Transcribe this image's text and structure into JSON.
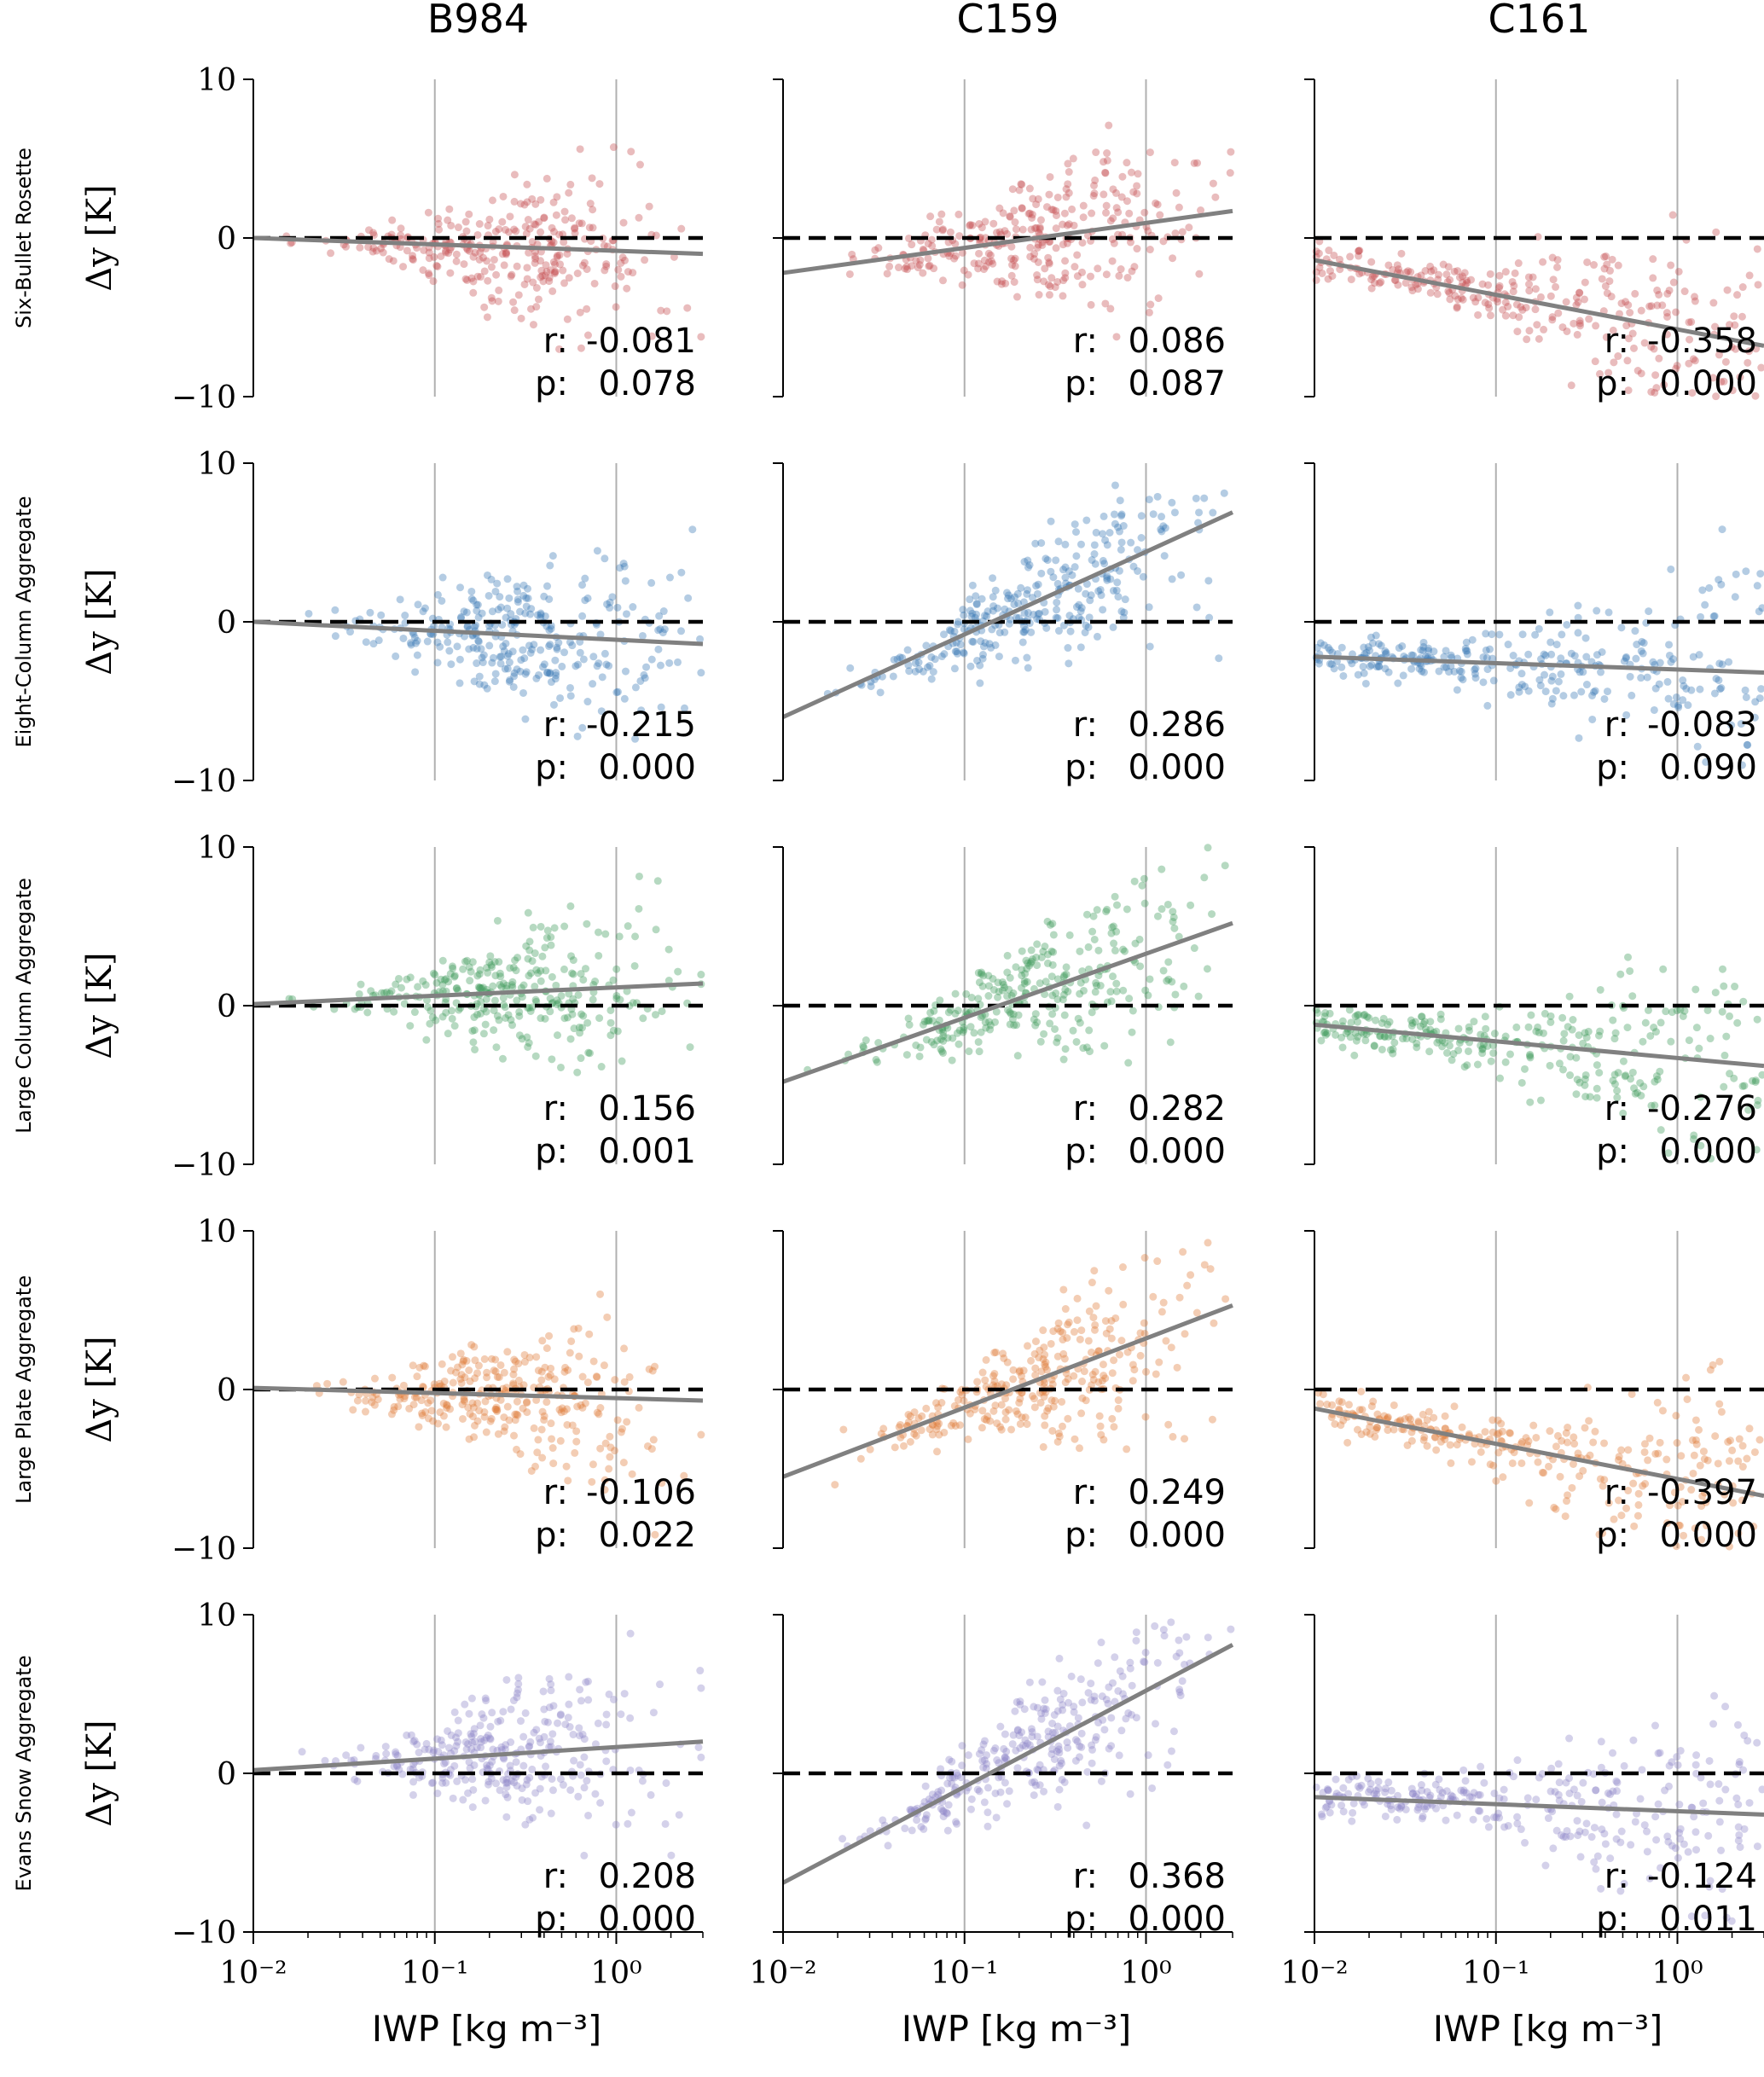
{
  "figure": {
    "column_titles": [
      "B984",
      "C159",
      "C161"
    ],
    "row_labels": [
      "Six-Bullet Rosette",
      "Eight-Column Aggregate",
      "Large Column Aggregate",
      "Large Plate Aggregate",
      "Evans Snow Aggregate"
    ],
    "ylabel": "Δy [K]",
    "xlabel": "IWP [kg m⁻³]",
    "y_tick_labels": [
      "10",
      "0",
      "−10"
    ],
    "x_tick_labels": [
      "10⁻²",
      "10⁻¹",
      "10⁰"
    ],
    "r_label": "r:",
    "p_label": "p:"
  },
  "colors": {
    "Six-Bullet Rosette": "#c44e52",
    "Eight-Column Aggregate": "#3a78b5",
    "Large Column Aggregate": "#3f9a5c",
    "Large Plate Aggregate": "#e07b39",
    "Evans Snow Aggregate": "#8f86c8",
    "fit_line": "#808080",
    "zero_line": "#000000",
    "grid": "#b0b0b0"
  },
  "chart_data": [
    {
      "type": "scatter",
      "row": "Six-Bullet Rosette",
      "column": "B984",
      "xscale": "log",
      "xlim": [
        0.01,
        3
      ],
      "ylim": [
        -10,
        10
      ],
      "fit": {
        "x": [
          0.01,
          3
        ],
        "y": [
          0.0,
          -1.0
        ]
      },
      "zero_line": 0,
      "r": "-0.081",
      "p": "0.078"
    },
    {
      "type": "scatter",
      "row": "Six-Bullet Rosette",
      "column": "C159",
      "xscale": "log",
      "xlim": [
        0.01,
        3
      ],
      "ylim": [
        -10,
        10
      ],
      "fit": {
        "x": [
          0.01,
          3
        ],
        "y": [
          -2.2,
          1.7
        ]
      },
      "zero_line": 0,
      "r": "0.086",
      "p": "0.087"
    },
    {
      "type": "scatter",
      "row": "Six-Bullet Rosette",
      "column": "C161",
      "xscale": "log",
      "xlim": [
        0.01,
        3
      ],
      "ylim": [
        -10,
        10
      ],
      "fit": {
        "x": [
          0.01,
          3
        ],
        "y": [
          -1.4,
          -6.8
        ]
      },
      "zero_line": 0,
      "r": "-0.358",
      "p": "0.000"
    },
    {
      "type": "scatter",
      "row": "Eight-Column Aggregate",
      "column": "B984",
      "xscale": "log",
      "xlim": [
        0.01,
        3
      ],
      "ylim": [
        -10,
        10
      ],
      "fit": {
        "x": [
          0.01,
          3
        ],
        "y": [
          0.0,
          -1.4
        ]
      },
      "zero_line": 0,
      "r": "-0.215",
      "p": "0.000"
    },
    {
      "type": "scatter",
      "row": "Eight-Column Aggregate",
      "column": "C159",
      "xscale": "log",
      "xlim": [
        0.01,
        3
      ],
      "ylim": [
        -10,
        10
      ],
      "fit": {
        "x": [
          0.01,
          3
        ],
        "y": [
          -6.0,
          6.9
        ]
      },
      "zero_line": 0,
      "r": "0.286",
      "p": "0.000"
    },
    {
      "type": "scatter",
      "row": "Eight-Column Aggregate",
      "column": "C161",
      "xscale": "log",
      "xlim": [
        0.01,
        3
      ],
      "ylim": [
        -10,
        10
      ],
      "fit": {
        "x": [
          0.01,
          3
        ],
        "y": [
          -2.2,
          -3.2
        ]
      },
      "zero_line": 0,
      "r": "-0.083",
      "p": "0.090"
    },
    {
      "type": "scatter",
      "row": "Large Column Aggregate",
      "column": "B984",
      "xscale": "log",
      "xlim": [
        0.01,
        3
      ],
      "ylim": [
        -10,
        10
      ],
      "fit": {
        "x": [
          0.01,
          3
        ],
        "y": [
          0.1,
          1.4
        ]
      },
      "zero_line": 0,
      "r": "0.156",
      "p": "0.001"
    },
    {
      "type": "scatter",
      "row": "Large Column Aggregate",
      "column": "C159",
      "xscale": "log",
      "xlim": [
        0.01,
        3
      ],
      "ylim": [
        -10,
        10
      ],
      "fit": {
        "x": [
          0.01,
          3
        ],
        "y": [
          -4.8,
          5.2
        ]
      },
      "zero_line": 0,
      "r": "0.282",
      "p": "0.000"
    },
    {
      "type": "scatter",
      "row": "Large Column Aggregate",
      "column": "C161",
      "xscale": "log",
      "xlim": [
        0.01,
        3
      ],
      "ylim": [
        -10,
        10
      ],
      "fit": {
        "x": [
          0.01,
          3
        ],
        "y": [
          -1.2,
          -3.8
        ]
      },
      "zero_line": 0,
      "r": "-0.276",
      "p": "0.000"
    },
    {
      "type": "scatter",
      "row": "Large Plate Aggregate",
      "column": "B984",
      "xscale": "log",
      "xlim": [
        0.01,
        3
      ],
      "ylim": [
        -10,
        10
      ],
      "fit": {
        "x": [
          0.01,
          3
        ],
        "y": [
          0.1,
          -0.7
        ]
      },
      "zero_line": 0,
      "r": "-0.106",
      "p": "0.022"
    },
    {
      "type": "scatter",
      "row": "Large Plate Aggregate",
      "column": "C159",
      "xscale": "log",
      "xlim": [
        0.01,
        3
      ],
      "ylim": [
        -10,
        10
      ],
      "fit": {
        "x": [
          0.01,
          3
        ],
        "y": [
          -5.5,
          5.3
        ]
      },
      "zero_line": 0,
      "r": "0.249",
      "p": "0.000"
    },
    {
      "type": "scatter",
      "row": "Large Plate Aggregate",
      "column": "C161",
      "xscale": "log",
      "xlim": [
        0.01,
        3
      ],
      "ylim": [
        -10,
        10
      ],
      "fit": {
        "x": [
          0.01,
          3
        ],
        "y": [
          -1.2,
          -6.7
        ]
      },
      "zero_line": 0,
      "r": "-0.397",
      "p": "0.000"
    },
    {
      "type": "scatter",
      "row": "Evans Snow Aggregate",
      "column": "B984",
      "xscale": "log",
      "xlim": [
        0.01,
        3
      ],
      "ylim": [
        -10,
        10
      ],
      "fit": {
        "x": [
          0.01,
          3
        ],
        "y": [
          0.2,
          2.0
        ]
      },
      "zero_line": 0,
      "r": "0.208",
      "p": "0.000"
    },
    {
      "type": "scatter",
      "row": "Evans Snow Aggregate",
      "column": "C159",
      "xscale": "log",
      "xlim": [
        0.01,
        3
      ],
      "ylim": [
        -10,
        10
      ],
      "fit": {
        "x": [
          0.01,
          3
        ],
        "y": [
          -6.9,
          8.1
        ]
      },
      "zero_line": 0,
      "r": "0.368",
      "p": "0.000"
    },
    {
      "type": "scatter",
      "row": "Evans Snow Aggregate",
      "column": "C161",
      "xscale": "log",
      "xlim": [
        0.01,
        3
      ],
      "ylim": [
        -10,
        10
      ],
      "fit": {
        "x": [
          0.01,
          3
        ],
        "y": [
          -1.5,
          -2.6
        ]
      },
      "zero_line": 0,
      "r": "-0.124",
      "p": "0.011"
    }
  ]
}
